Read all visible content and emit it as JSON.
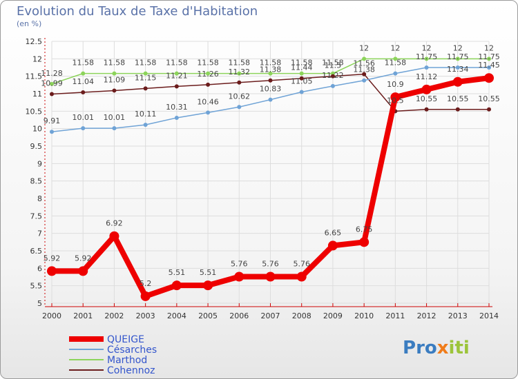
{
  "title": "Evolution du Taux de Taxe d'Habitation",
  "subtitle": "(en %)",
  "logo": "Proxiti",
  "colors": {
    "QUEIGE": "#ee0000",
    "Césarches": "#6fa3d6",
    "Marthod": "#8cd45a",
    "Cohennoz": "#6b1c1c"
  },
  "chart_data": {
    "type": "line",
    "x": [
      2000,
      2001,
      2002,
      2003,
      2004,
      2005,
      2006,
      2007,
      2008,
      2009,
      2010,
      2011,
      2012,
      2013,
      2014
    ],
    "ylim": [
      5,
      12.5
    ],
    "yticks": [
      5,
      5.5,
      6,
      6.5,
      7,
      7.5,
      8,
      8.5,
      9,
      9.5,
      10,
      10.5,
      11,
      11.5,
      12,
      12.5
    ],
    "ytick_labels": [
      "5",
      "5.5",
      "6",
      "6.5",
      "7",
      "7.5",
      "8",
      "8.5",
      "9",
      "9.5",
      "10",
      "10.5",
      "11",
      "11.5",
      "12",
      "12.5"
    ],
    "grid": true,
    "legend_position": "bottom-left",
    "series": [
      {
        "name": "QUEIGE",
        "values": [
          5.92,
          5.92,
          6.92,
          5.2,
          5.51,
          5.51,
          5.76,
          5.76,
          5.76,
          6.65,
          6.75,
          10.9,
          11.12,
          11.34,
          11.45
        ],
        "labels": [
          "5.92",
          "5.92",
          "6.92",
          "5.2",
          "5.51",
          "5.51",
          "5.76",
          "5.76",
          "5.76",
          "6.65",
          "6.75",
          "10.9",
          "11.12",
          "11.34",
          "11.45"
        ]
      },
      {
        "name": "Césarches",
        "values": [
          9.91,
          10.01,
          10.01,
          10.11,
          10.31,
          10.46,
          10.62,
          10.83,
          11.05,
          11.22,
          11.38,
          11.58,
          11.75,
          11.75,
          11.75
        ],
        "labels": [
          "9.91",
          "10.01",
          "10.01",
          "10.11",
          "10.31",
          "10.46",
          "10.62",
          "10.83",
          "11.05",
          "11.22",
          "11.38",
          "11.58",
          "11.75",
          "11.75",
          "11.75"
        ]
      },
      {
        "name": "Marthod",
        "values": [
          11.28,
          11.58,
          11.58,
          11.58,
          11.58,
          11.58,
          11.58,
          11.58,
          11.58,
          11.58,
          12,
          12,
          12,
          12,
          12
        ],
        "labels": [
          "11.28",
          "11.58",
          "11.58",
          "11.58",
          "11.58",
          "11.58",
          "11.58",
          "11.58",
          "11.58",
          "11.58",
          "12",
          "12",
          "12",
          "12",
          "12"
        ]
      },
      {
        "name": "Cohennoz",
        "values": [
          10.99,
          11.04,
          11.09,
          11.15,
          11.21,
          11.26,
          11.32,
          11.38,
          11.44,
          11.5,
          11.56,
          10.5,
          10.55,
          10.55,
          10.55
        ],
        "labels": [
          "10.99",
          "11.04",
          "11.09",
          "11.15",
          "11.21",
          "11.26",
          "11.32",
          "11.38",
          "11.44",
          "11.5",
          "11.56",
          "10.5",
          "10.55",
          "10.55",
          "10.55"
        ]
      }
    ]
  }
}
